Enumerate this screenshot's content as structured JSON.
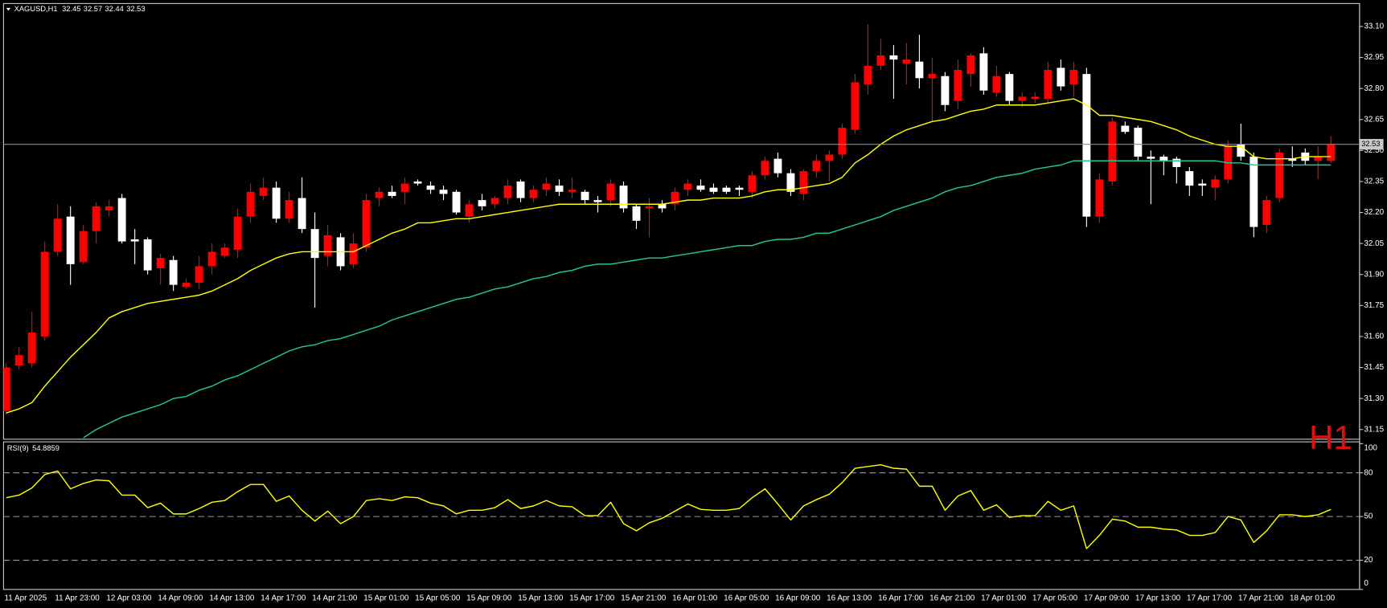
{
  "chart_data": {
    "type": "candlestick",
    "title": "XAGUSD,H1",
    "watermark": "H1",
    "categories": [
      "11 Apr 2025",
      null,
      null,
      null,
      "11 Apr 23:00",
      null,
      null,
      null,
      "12 Apr 03:00",
      null,
      null,
      null,
      "14 Apr 09:00",
      null,
      null,
      null,
      "14 Apr 13:00",
      null,
      null,
      null,
      "14 Apr 17:00",
      null,
      null,
      null,
      "14 Apr 21:00",
      null,
      null,
      null,
      "15 Apr 01:00",
      null,
      null,
      null,
      "15 Apr 05:00",
      null,
      null,
      null,
      "15 Apr 09:00",
      null,
      null,
      null,
      "15 Apr 13:00",
      null,
      null,
      null,
      "15 Apr 17:00",
      null,
      null,
      null,
      "15 Apr 21:00",
      null,
      null,
      null,
      "16 Apr 01:00",
      null,
      null,
      null,
      "16 Apr 05:00",
      null,
      null,
      null,
      "16 Apr 09:00",
      null,
      null,
      null,
      "16 Apr 13:00",
      null,
      null,
      null,
      "16 Apr 17:00",
      null,
      null,
      null,
      "16 Apr 21:00",
      null,
      null,
      null,
      "17 Apr 01:00",
      null,
      null,
      null,
      "17 Apr 05:00",
      null,
      null,
      null,
      "17 Apr 09:00",
      null,
      null,
      null,
      "17 Apr 13:00",
      null,
      null,
      null,
      "17 Apr 17:00",
      null,
      null,
      null,
      "17 Apr 21:00",
      null,
      null,
      null,
      "18 Apr 01:00",
      null,
      null,
      null
    ],
    "open": [
      31.24,
      31.46,
      31.47,
      31.6,
      32.01,
      32.18,
      31.96,
      32.11,
      32.21,
      32.27,
      32.07,
      32.07,
      31.93,
      31.97,
      31.84,
      31.86,
      31.94,
      31.99,
      32.02,
      32.18,
      32.28,
      32.32,
      32.17,
      32.27,
      32.12,
      31.99,
      32.08,
      31.95,
      32.03,
      32.27,
      32.3,
      32.3,
      32.35,
      32.33,
      32.31,
      32.3,
      32.18,
      32.26,
      32.24,
      32.27,
      32.35,
      32.27,
      32.31,
      32.33,
      32.3,
      32.3,
      32.26,
      32.26,
      32.33,
      32.23,
      32.22,
      32.24,
      32.24,
      32.31,
      32.33,
      32.32,
      32.32,
      32.32,
      32.3,
      32.38,
      32.46,
      32.39,
      32.29,
      32.4,
      32.45,
      32.48,
      32.6,
      32.82,
      32.91,
      32.96,
      32.92,
      32.93,
      32.85,
      32.86,
      32.74,
      32.87,
      32.97,
      32.78,
      32.87,
      32.74,
      32.75,
      32.75,
      32.9,
      32.82,
      32.87,
      32.18,
      32.35,
      32.62,
      32.61,
      32.47,
      32.47,
      32.46,
      32.4,
      32.34,
      32.32,
      32.36,
      32.53,
      32.47,
      32.14,
      32.27,
      32.46,
      32.49,
      32.45,
      32.45
    ],
    "high": [
      31.47,
      31.55,
      31.72,
      32.06,
      32.24,
      32.23,
      32.14,
      32.25,
      32.26,
      32.29,
      32.12,
      32.08,
      32.0,
      31.99,
      31.88,
      31.99,
      32.05,
      32.05,
      32.22,
      32.34,
      32.37,
      32.35,
      32.3,
      32.37,
      32.2,
      32.14,
      32.1,
      32.1,
      32.29,
      32.32,
      32.33,
      32.37,
      32.36,
      32.35,
      32.33,
      32.31,
      32.26,
      32.29,
      32.28,
      32.36,
      32.36,
      32.33,
      32.37,
      32.36,
      32.37,
      32.31,
      32.28,
      32.36,
      32.35,
      32.24,
      32.27,
      32.26,
      32.32,
      32.36,
      32.36,
      32.34,
      32.33,
      32.33,
      32.4,
      32.47,
      32.49,
      32.41,
      32.41,
      32.48,
      32.5,
      32.63,
      32.87,
      33.11,
      33.04,
      33.01,
      33.02,
      33.06,
      32.95,
      32.88,
      32.94,
      32.97,
      33.0,
      32.91,
      32.88,
      32.78,
      32.78,
      32.93,
      32.94,
      32.93,
      32.9,
      32.39,
      32.66,
      32.64,
      32.62,
      32.5,
      32.48,
      32.47,
      32.42,
      32.36,
      32.38,
      32.55,
      32.63,
      32.49,
      32.28,
      32.51,
      32.52,
      32.51,
      32.52,
      32.57
    ],
    "low": [
      31.22,
      31.44,
      31.45,
      31.58,
      31.99,
      31.85,
      31.95,
      32.05,
      32.18,
      32.05,
      31.95,
      31.9,
      31.85,
      31.82,
      31.83,
      31.83,
      31.9,
      31.98,
      31.98,
      32.15,
      32.26,
      32.15,
      32.15,
      32.1,
      31.74,
      31.94,
      31.92,
      31.93,
      32.01,
      32.23,
      32.27,
      32.24,
      32.33,
      32.29,
      32.26,
      32.19,
      32.15,
      32.21,
      32.22,
      32.24,
      32.25,
      32.25,
      32.28,
      32.28,
      32.27,
      32.24,
      32.2,
      32.23,
      32.2,
      32.12,
      32.08,
      32.2,
      32.21,
      32.28,
      32.3,
      32.29,
      32.29,
      32.28,
      32.27,
      32.36,
      32.37,
      32.28,
      32.26,
      32.37,
      32.35,
      32.46,
      32.58,
      32.77,
      32.89,
      32.75,
      32.82,
      32.8,
      32.64,
      32.69,
      32.7,
      32.81,
      32.77,
      32.76,
      32.72,
      32.71,
      32.73,
      32.73,
      32.79,
      32.76,
      32.13,
      32.15,
      32.33,
      32.58,
      32.45,
      32.24,
      32.38,
      32.34,
      32.28,
      32.28,
      32.26,
      32.34,
      32.45,
      32.08,
      32.1,
      32.25,
      32.42,
      32.43,
      32.36,
      32.44
    ],
    "close": [
      31.45,
      31.51,
      31.62,
      32.01,
      32.17,
      31.95,
      32.11,
      32.23,
      32.23,
      32.06,
      32.06,
      31.92,
      31.98,
      31.85,
      31.86,
      31.94,
      32.01,
      32.03,
      32.18,
      32.3,
      32.32,
      32.17,
      32.26,
      32.12,
      31.98,
      32.09,
      31.94,
      32.05,
      32.26,
      32.3,
      32.28,
      32.34,
      32.34,
      32.31,
      32.29,
      32.2,
      32.24,
      32.23,
      32.27,
      32.33,
      32.27,
      32.31,
      32.34,
      32.3,
      32.31,
      32.26,
      32.25,
      32.34,
      32.22,
      32.16,
      32.23,
      32.22,
      32.3,
      32.34,
      32.31,
      32.3,
      32.3,
      32.31,
      32.38,
      32.45,
      32.39,
      32.3,
      32.4,
      32.45,
      32.48,
      32.61,
      32.83,
      32.91,
      32.96,
      32.94,
      32.94,
      32.85,
      32.87,
      32.72,
      32.89,
      32.96,
      32.79,
      32.86,
      32.74,
      32.76,
      32.76,
      32.89,
      32.81,
      32.89,
      32.18,
      32.36,
      32.64,
      32.59,
      32.47,
      32.46,
      32.45,
      32.42,
      32.33,
      32.33,
      32.36,
      32.52,
      32.47,
      32.13,
      32.26,
      32.49,
      32.45,
      32.45,
      32.47,
      32.53
    ],
    "up_color": "#ff0000",
    "down_color": "#ffffff",
    "ylim": [
      31.103,
      33.211
    ],
    "yticks": [
      31.15,
      {
        "value": 31.3,
        "label": "31.30"
      },
      31.45,
      {
        "value": 31.6,
        "label": "31.60"
      },
      31.75,
      {
        "value": 31.9,
        "label": "31.90"
      },
      32.05,
      {
        "value": 32.2,
        "label": "32.20"
      },
      32.35,
      {
        "value": 32.5,
        "label": "32.50"
      },
      32.65,
      {
        "value": 32.8,
        "label": "32.80"
      },
      32.95,
      {
        "value": 33.1,
        "label": "33.10"
      }
    ],
    "grid": false,
    "price_line_color": "#7f8fa0",
    "moving_averages": [
      {
        "color": "#ffff00",
        "values": [
          31.23,
          31.25,
          31.28,
          31.36,
          31.43,
          31.5,
          31.56,
          31.62,
          31.69,
          31.72,
          31.74,
          31.76,
          31.77,
          31.78,
          31.79,
          31.8,
          31.82,
          31.85,
          31.88,
          31.92,
          31.95,
          31.98,
          32.0,
          32.01,
          32.01,
          32.01,
          32.01,
          32.01,
          32.04,
          32.07,
          32.1,
          32.12,
          32.15,
          32.15,
          32.16,
          32.17,
          32.17,
          32.18,
          32.19,
          32.2,
          32.21,
          32.22,
          32.23,
          32.24,
          32.24,
          32.24,
          32.24,
          32.24,
          32.24,
          32.24,
          32.24,
          32.24,
          32.25,
          32.26,
          32.26,
          32.27,
          32.27,
          32.27,
          32.28,
          32.3,
          32.31,
          32.31,
          32.32,
          32.33,
          32.34,
          32.37,
          32.44,
          32.48,
          32.53,
          32.57,
          32.6,
          32.62,
          32.64,
          32.65,
          32.67,
          32.69,
          32.7,
          32.72,
          32.72,
          32.72,
          32.72,
          32.73,
          32.74,
          32.75,
          32.72,
          32.67,
          32.67,
          32.66,
          32.65,
          32.64,
          32.62,
          32.6,
          32.57,
          32.55,
          32.53,
          32.52,
          32.52,
          32.47,
          32.46,
          32.46,
          32.46,
          32.47,
          32.47,
          32.47
        ]
      },
      {
        "color": "#20c8a0",
        "values": [
          null,
          null,
          null,
          null,
          null,
          null,
          31.11,
          31.15,
          31.18,
          31.21,
          31.23,
          31.25,
          31.27,
          31.3,
          31.31,
          31.34,
          31.36,
          31.39,
          31.41,
          31.44,
          31.47,
          31.5,
          31.53,
          31.55,
          31.56,
          31.58,
          31.59,
          31.61,
          31.63,
          31.65,
          31.68,
          31.7,
          31.72,
          31.74,
          31.76,
          31.78,
          31.79,
          31.81,
          31.83,
          31.84,
          31.86,
          31.88,
          31.89,
          31.91,
          31.92,
          31.94,
          31.95,
          31.95,
          31.96,
          31.97,
          31.98,
          31.98,
          31.99,
          32.0,
          32.01,
          32.02,
          32.03,
          32.04,
          32.04,
          32.06,
          32.07,
          32.07,
          32.08,
          32.1,
          32.1,
          32.12,
          32.14,
          32.16,
          32.18,
          32.21,
          32.23,
          32.25,
          32.27,
          32.3,
          32.32,
          32.33,
          32.35,
          32.37,
          32.38,
          32.39,
          32.41,
          32.42,
          32.43,
          32.45,
          32.45,
          32.45,
          32.45,
          32.45,
          32.45,
          32.45,
          32.45,
          32.45,
          32.45,
          32.45,
          32.45,
          32.44,
          32.44,
          32.43,
          32.43,
          32.43,
          32.43,
          32.43,
          32.43,
          32.43
        ]
      }
    ],
    "rsi": {
      "label": "RSI(9)",
      "color": "#ffff00",
      "values": [
        62.9,
        64.7,
        69.6,
        78.8,
        81.2,
        69.0,
        72.7,
        75.1,
        74.5,
        64.7,
        64.7,
        56.1,
        59.2,
        51.8,
        51.8,
        55.5,
        59.8,
        61.0,
        67.1,
        72.0,
        72.0,
        60.4,
        64.1,
        54.3,
        46.9,
        53.7,
        45.1,
        50.0,
        61.0,
        62.2,
        61.0,
        63.5,
        62.9,
        59.2,
        57.3,
        51.8,
        54.3,
        54.3,
        56.1,
        61.6,
        55.5,
        57.3,
        61.0,
        57.3,
        56.7,
        50.6,
        50.6,
        59.8,
        45.1,
        40.2,
        45.7,
        48.8,
        53.7,
        58.6,
        54.9,
        54.3,
        54.3,
        55.5,
        62.9,
        69.0,
        58.6,
        47.6,
        57.3,
        61.6,
        65.3,
        73.3,
        83.1,
        84.3,
        85.5,
        83.1,
        82.5,
        70.8,
        70.8,
        54.3,
        64.1,
        67.8,
        54.3,
        58.0,
        49.4,
        50.6,
        50.6,
        60.4,
        54.3,
        57.3,
        28.0,
        37.1,
        48.2,
        46.9,
        42.7,
        42.7,
        41.4,
        40.8,
        37.1,
        37.1,
        39.0,
        50.0,
        47.6,
        32.2,
        40.2,
        51.2,
        51.2,
        50.0,
        51.2,
        54.8859
      ],
      "ylim": [
        0,
        100
      ],
      "yticks": [
        100,
        80,
        50,
        20,
        0
      ],
      "levels": [
        80,
        50,
        20
      ],
      "level_color": "#9a9a9a"
    }
  }
}
